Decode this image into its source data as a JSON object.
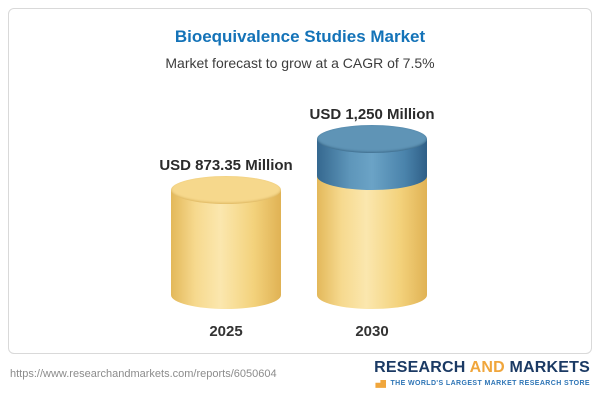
{
  "chart_data": {
    "type": "bar",
    "title": "Bioequivalence Studies Market",
    "subtitle": "Market forecast to grow at a CAGR of 7.5%",
    "categories": [
      "2025",
      "2030"
    ],
    "values": [
      873.35,
      1250
    ],
    "value_labels": [
      "USD 873.35 Million",
      "USD 1,250 Million"
    ],
    "unit": "USD Million",
    "cagr_percent": 7.5,
    "legend_position": "none",
    "grid": "off",
    "colors": {
      "bar_base": "#f6d88c",
      "bar_growth": "#4d87ad",
      "title": "#1473b8"
    }
  },
  "footer": {
    "source_url": "https://www.researchandmarkets.com/reports/6050604",
    "logo": {
      "word1": "RESEARCH",
      "word2": "AND",
      "word3": "MARKETS",
      "tagline": "THE WORLD'S LARGEST MARKET RESEARCH STORE"
    }
  }
}
